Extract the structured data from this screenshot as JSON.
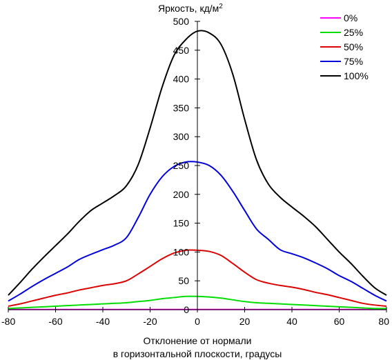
{
  "chart_data": {
    "type": "line",
    "ylabel": "Яркость, кд/м",
    "ylabel_superscript": "2",
    "xlabel_line1": "Отклонение от нормали",
    "xlabel_line2": "в горизонтальной плоскости, градусы",
    "xlim": [
      -80,
      80
    ],
    "ylim": [
      0,
      500
    ],
    "xticks": [
      -80,
      -60,
      -40,
      -20,
      0,
      20,
      40,
      60,
      80
    ],
    "yticks": [
      0,
      50,
      100,
      150,
      200,
      250,
      300,
      350,
      400,
      450,
      500
    ],
    "grid": false,
    "legend_position": "top-right",
    "x": [
      -80,
      -75,
      -70,
      -65,
      -60,
      -55,
      -50,
      -45,
      -40,
      -35,
      -30,
      -25,
      -20,
      -15,
      -10,
      -5,
      0,
      5,
      10,
      15,
      20,
      25,
      30,
      35,
      40,
      45,
      50,
      55,
      60,
      65,
      70,
      75,
      80
    ],
    "series": [
      {
        "name": "0%",
        "color": "#ff00ff",
        "values": [
          0.3,
          0.3,
          0.3,
          0.3,
          0.3,
          0.3,
          0.3,
          0.3,
          0.3,
          0.3,
          0.3,
          0.3,
          0.3,
          0.3,
          0.3,
          0.3,
          0.3,
          0.3,
          0.3,
          0.3,
          0.3,
          0.3,
          0.3,
          0.3,
          0.3,
          0.3,
          0.3,
          0.3,
          0.3,
          0.3,
          0.3,
          0.3,
          0.3
        ]
      },
      {
        "name": "25%",
        "color": "#00dd00",
        "values": [
          2,
          3,
          4,
          5,
          6,
          7,
          8,
          9,
          10,
          11,
          12,
          14,
          16,
          19,
          21,
          23,
          23,
          22,
          20,
          17,
          14,
          12,
          11,
          10,
          9,
          8,
          7,
          6,
          5,
          4,
          3,
          2,
          2
        ]
      },
      {
        "name": "50%",
        "color": "#dd0000",
        "values": [
          6,
          10,
          15,
          20,
          25,
          29,
          34,
          38,
          42,
          45,
          50,
          62,
          75,
          88,
          98,
          103,
          103,
          101,
          94,
          80,
          65,
          52,
          46,
          42,
          39,
          35,
          30,
          26,
          21,
          16,
          11,
          8,
          6
        ]
      },
      {
        "name": "75%",
        "color": "#0000dd",
        "values": [
          15,
          27,
          40,
          52,
          63,
          74,
          87,
          96,
          104,
          112,
          125,
          160,
          200,
          230,
          248,
          256,
          256,
          250,
          233,
          205,
          172,
          140,
          122,
          104,
          97,
          90,
          81,
          71,
          59,
          49,
          37,
          25,
          15
        ]
      },
      {
        "name": "100%",
        "color": "#000000",
        "values": [
          25,
          47,
          70,
          91,
          111,
          131,
          153,
          172,
          185,
          198,
          215,
          252,
          315,
          385,
          440,
          468,
          483,
          480,
          460,
          408,
          330,
          260,
          218,
          195,
          178,
          162,
          144,
          122,
          100,
          80,
          58,
          38,
          25
        ]
      }
    ]
  }
}
